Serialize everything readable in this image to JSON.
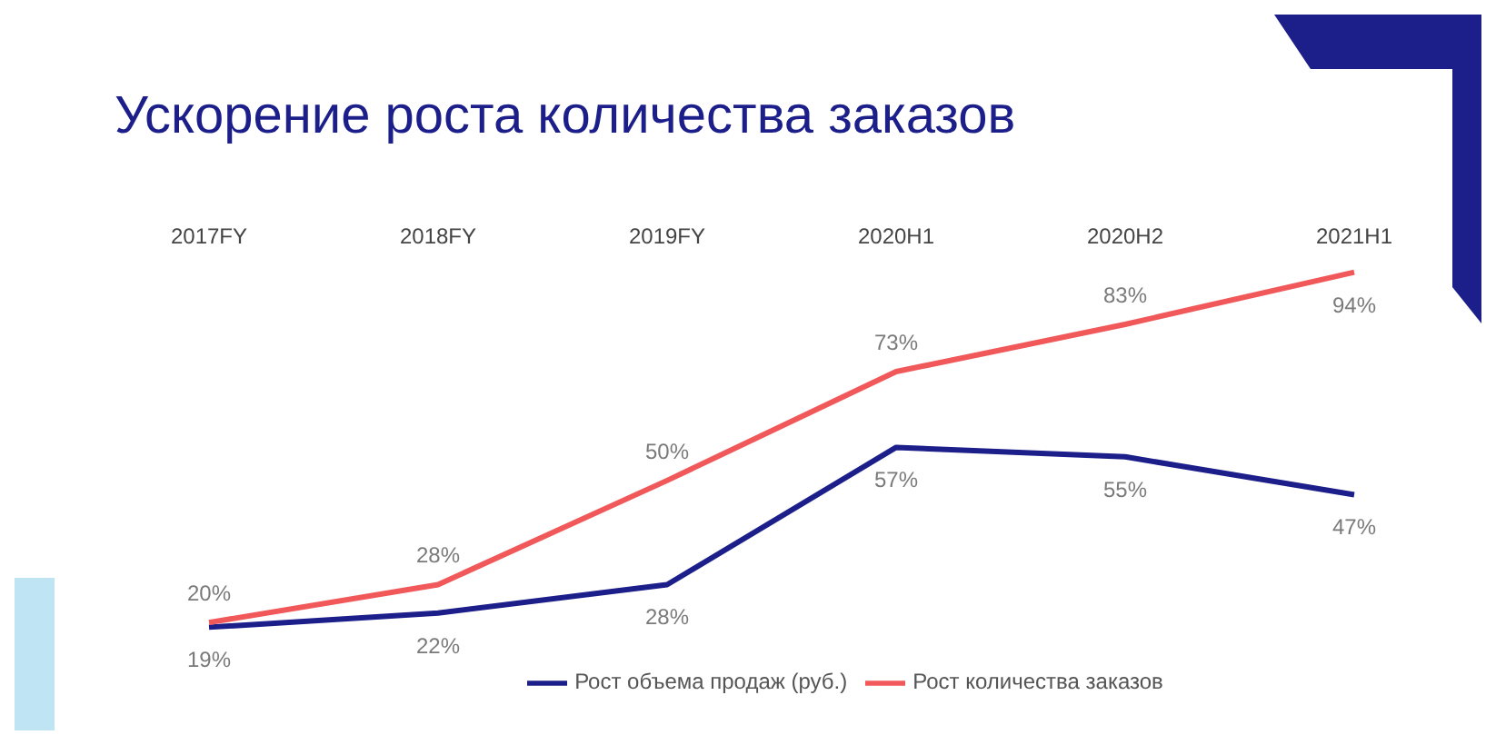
{
  "chart_data": {
    "type": "line",
    "title": "Ускорение роста количества заказов",
    "categories": [
      "2017FY",
      "2018FY",
      "2019FY",
      "2020H1",
      "2020H2",
      "2021H1"
    ],
    "series": [
      {
        "name": "Рост объема продаж (руб.)",
        "color": "#1c1f8a",
        "values": [
          19,
          22,
          28,
          57,
          55,
          47
        ],
        "value_labels": [
          "19%",
          "22%",
          "28%",
          "57%",
          "55%",
          "47%"
        ]
      },
      {
        "name": "Рост количества заказов",
        "color": "#f0585a",
        "values": [
          20,
          28,
          50,
          73,
          83,
          94
        ],
        "value_labels": [
          "20%",
          "28%",
          "50%",
          "73%",
          "83%",
          "94%"
        ]
      }
    ],
    "grid": false,
    "legend": "bottom",
    "marker": "none",
    "line_style": "solid"
  }
}
